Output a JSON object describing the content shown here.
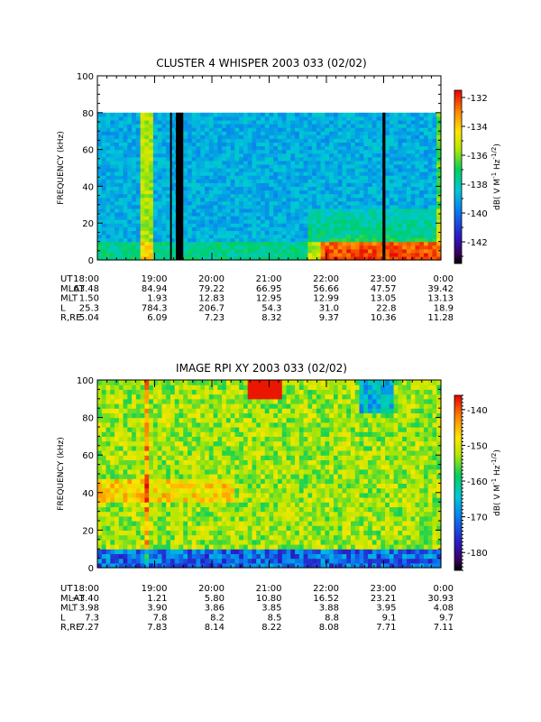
{
  "chart_data": [
    {
      "type": "heatmap",
      "title": "CLUSTER 4 WHISPER 2003 033 (02/02)",
      "ylabel": "FREQUENCY (kHz)",
      "ylim": [
        0,
        100
      ],
      "yticks": [
        "0",
        "20",
        "40",
        "60",
        "80",
        "100"
      ],
      "data_top_khz": 80,
      "xticks": [
        "18:00",
        "19:00",
        "20:00",
        "21:00",
        "22:00",
        "23:00",
        "0:00"
      ],
      "colorbar": {
        "label": "dB( V M",
        "sup1": "-1",
        "hz": " Hz",
        "sup2": "-1/2",
        "close": ")",
        "range": [
          -143.5,
          -131.5
        ],
        "ticks": [
          "-132",
          "-134",
          "-136",
          "-138",
          "-140",
          "-142"
        ],
        "tick_values": [
          -132,
          -134,
          -136,
          -138,
          -140,
          -142
        ],
        "scale": "rainbow"
      },
      "data_gaps_hours": [
        [
          1.27,
          1.3
        ],
        [
          1.37,
          1.5
        ],
        [
          4.98,
          5.03
        ]
      ],
      "ephemeris": {
        "labels": [
          "UT",
          "MLAT",
          "MLT",
          "L",
          "R,RE"
        ],
        "columns": [
          [
            "18:00",
            "63.48",
            "1.50",
            "25.3",
            "5.04"
          ],
          [
            "19:00",
            "84.94",
            "1.93",
            "784.3",
            "6.09"
          ],
          [
            "20:00",
            "79.22",
            "12.83",
            "206.7",
            "7.23"
          ],
          [
            "21:00",
            "66.95",
            "12.95",
            "54.3",
            "8.32"
          ],
          [
            "22:00",
            "56.66",
            "12.99",
            "31.0",
            "9.37"
          ],
          [
            "23:00",
            "47.57",
            "13.05",
            "22.8",
            "10.36"
          ],
          [
            "0:00",
            "39.42",
            "13.13",
            "18.9",
            "11.28"
          ]
        ]
      }
    },
    {
      "type": "heatmap",
      "title": "IMAGE RPI XY 2003 033 (02/02)",
      "ylabel": "FREQUENCY (kHz)",
      "ylim": [
        0,
        100
      ],
      "yticks": [
        "0",
        "20",
        "40",
        "60",
        "80",
        "100"
      ],
      "data_top_khz": 100,
      "xticks": [
        "18:00",
        "19:00",
        "20:00",
        "21:00",
        "22:00",
        "23:00",
        "0:00"
      ],
      "colorbar": {
        "label": "dB( V M",
        "sup1": "-1",
        "hz": " Hz",
        "sup2": "-1/2",
        "close": ")",
        "range": [
          -185,
          -136
        ],
        "ticks": [
          "-140",
          "-150",
          "-160",
          "-170",
          "-180"
        ],
        "tick_values": [
          -140,
          -150,
          -160,
          -170,
          -180
        ],
        "scale": "rainbow"
      },
      "ephemeris": {
        "labels": [
          "UT",
          "MLAT",
          "MLT",
          "L",
          "R,RE"
        ],
        "columns": [
          [
            "18:00",
            "−3.40",
            "3.98",
            "7.3",
            "7.27"
          ],
          [
            "19:00",
            "1.21",
            "3.90",
            "7.8",
            "7.83"
          ],
          [
            "20:00",
            "5.80",
            "3.86",
            "8.2",
            "8.14"
          ],
          [
            "21:00",
            "10.80",
            "3.85",
            "8.5",
            "8.22"
          ],
          [
            "22:00",
            "16.52",
            "3.88",
            "8.8",
            "8.08"
          ],
          [
            "23:00",
            "23.21",
            "3.95",
            "9.1",
            "7.71"
          ],
          [
            "0:00",
            "30.93",
            "4.08",
            "9.7",
            "7.11"
          ]
        ]
      }
    }
  ]
}
